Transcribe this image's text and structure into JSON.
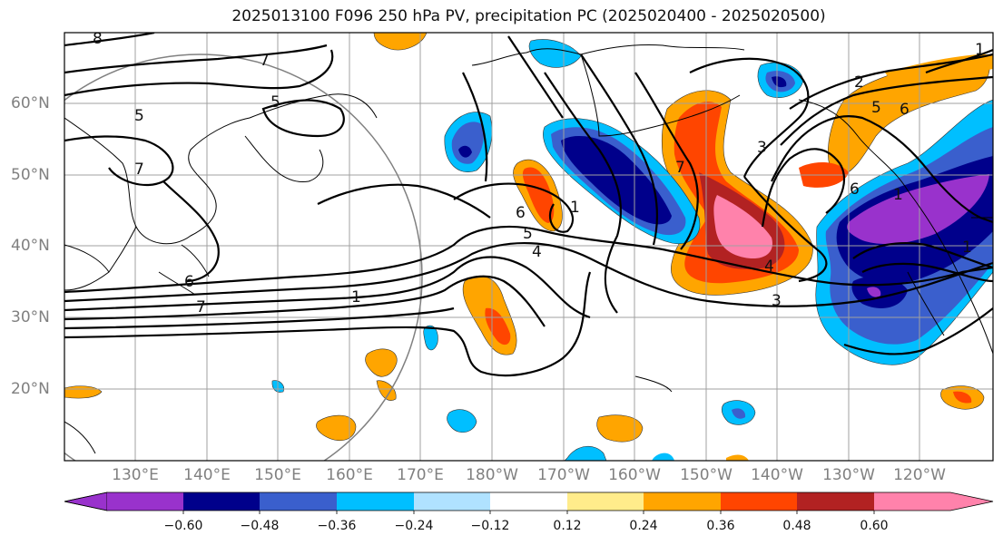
{
  "title": "2025013100 F096 250 hPa PV, precipitation PC (2025020400 - 2025020500)",
  "lat_labels": [
    {
      "text": "60°N"
    },
    {
      "text": "50°N"
    },
    {
      "text": "40°N"
    },
    {
      "text": "30°N"
    },
    {
      "text": "20°N"
    }
  ],
  "lon_labels": [
    {
      "text": "130°E"
    },
    {
      "text": "140°E"
    },
    {
      "text": "150°E"
    },
    {
      "text": "160°E"
    },
    {
      "text": "170°E"
    },
    {
      "text": "180°W"
    },
    {
      "text": "170°W"
    },
    {
      "text": "160°W"
    },
    {
      "text": "150°W"
    },
    {
      "text": "140°W"
    },
    {
      "text": "130°W"
    },
    {
      "text": "120°W"
    }
  ],
  "colorbar": {
    "ticks": [
      "−0.60",
      "−0.48",
      "−0.36",
      "−0.24",
      "−0.12",
      "0.12",
      "0.24",
      "0.36",
      "0.48",
      "0.60"
    ],
    "colors": [
      "#9932cc",
      "#00008b",
      "#3a5fcd",
      "#00bfff",
      "#b0e2ff",
      "#ffffff",
      "#ffec8b",
      "#ffa500",
      "#ff4500",
      "#b22222",
      "#ff82ab"
    ]
  },
  "contour_labels": [
    "8",
    "7",
    "5",
    "5",
    "7",
    "6",
    "7",
    "1",
    "6",
    "5",
    "4",
    "1",
    "7",
    "3",
    "2",
    "5",
    "6",
    "6",
    "1",
    "4",
    "3",
    "1",
    "1"
  ],
  "colors": {
    "positive_anomaly": "#ff4500",
    "negative_anomaly": "#00008b",
    "contour_line": "#000000",
    "grid_line": "#a0a0a0"
  }
}
